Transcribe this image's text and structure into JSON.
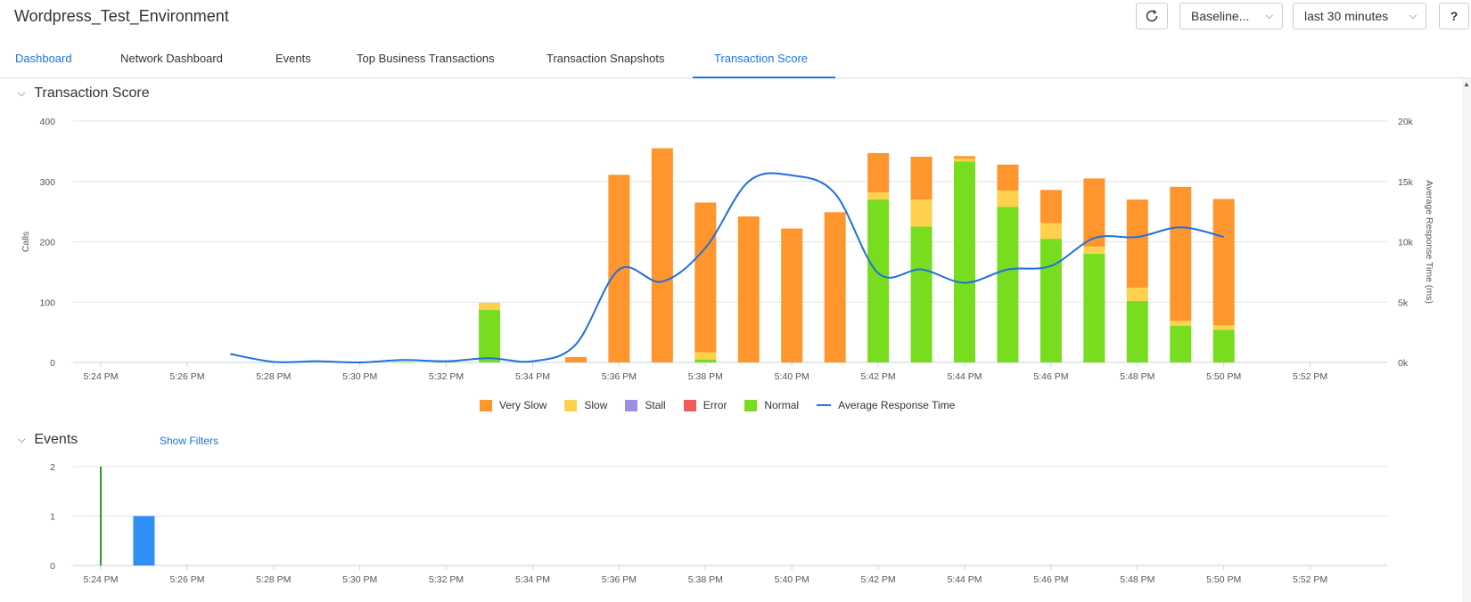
{
  "header": {
    "title": "Wordpress_Test_Environment",
    "baseline_label": "Baseline...",
    "time_range_label": "last 30 minutes",
    "help_label": "?",
    "refresh_icon": "refresh-icon"
  },
  "tabs": [
    {
      "label": "Dashboard"
    },
    {
      "label": "Network Dashboard"
    },
    {
      "label": "Events"
    },
    {
      "label": "Top Business Transactions"
    },
    {
      "label": "Transaction Snapshots"
    },
    {
      "label": "Transaction Score",
      "active": true
    }
  ],
  "score_section": {
    "title": "Transaction Score"
  },
  "events_section": {
    "title": "Events",
    "filters_link": "Show Filters"
  },
  "colors": {
    "very_slow": "#ff962d",
    "slow": "#ffd04d",
    "stall": "#9b8fe6",
    "error": "#ee5b5b",
    "normal": "#77dd1e",
    "avg_line": "#1f6fe0",
    "event_bar": "#2f8ff5",
    "event_line": "#2a9d2a"
  },
  "chart_data": [
    {
      "type": "bar",
      "stacked": true,
      "title": "Transaction Score",
      "ylabel": "Calls",
      "y2label": "Average Response Time (ms)",
      "ylim": [
        0,
        400
      ],
      "y2lim": [
        0,
        20000
      ],
      "yticks": [
        "0",
        "100",
        "200",
        "300",
        "400"
      ],
      "y2ticks": [
        "0k",
        "5k",
        "10k",
        "15k",
        "20k"
      ],
      "xticks": [
        "5:24 PM",
        "5:26 PM",
        "5:28 PM",
        "5:30 PM",
        "5:32 PM",
        "5:34 PM",
        "5:36 PM",
        "5:38 PM",
        "5:40 PM",
        "5:42 PM",
        "5:44 PM",
        "5:46 PM",
        "5:48 PM",
        "5:50 PM",
        "5:52 PM"
      ],
      "categories": [
        "5:24 PM",
        "5:25 PM",
        "5:26 PM",
        "5:27 PM",
        "5:28 PM",
        "5:29 PM",
        "5:30 PM",
        "5:31 PM",
        "5:32 PM",
        "5:33 PM",
        "5:34 PM",
        "5:35 PM",
        "5:36 PM",
        "5:37 PM",
        "5:38 PM",
        "5:39 PM",
        "5:40 PM",
        "5:41 PM",
        "5:42 PM",
        "5:43 PM",
        "5:44 PM",
        "5:45 PM",
        "5:46 PM",
        "5:47 PM",
        "5:48 PM",
        "5:49 PM",
        "5:50 PM",
        "5:51 PM",
        "5:52 PM",
        "5:53 PM"
      ],
      "series": [
        {
          "name": "Normal",
          "values": [
            0,
            0,
            0,
            0,
            0,
            0,
            0,
            1,
            1,
            87,
            0,
            0,
            0,
            0,
            5,
            0,
            0,
            0,
            270,
            225,
            333,
            258,
            205,
            180,
            102,
            61,
            54,
            0,
            0,
            0
          ]
        },
        {
          "name": "Slow",
          "values": [
            0,
            0,
            0,
            0,
            0,
            0,
            0,
            0,
            0,
            12,
            0,
            0,
            0,
            0,
            12,
            0,
            0,
            0,
            12,
            45,
            5,
            27,
            26,
            12,
            22,
            8,
            8,
            0,
            0,
            0
          ]
        },
        {
          "name": "Very Slow",
          "values": [
            0,
            0,
            0,
            0,
            0,
            0,
            0,
            0,
            0,
            0,
            0,
            9,
            311,
            355,
            248,
            242,
            222,
            249,
            65,
            71,
            4,
            43,
            55,
            113,
            146,
            222,
            209,
            0,
            0,
            0
          ]
        },
        {
          "name": "Stall",
          "values": [
            0,
            0,
            0,
            0,
            0,
            0,
            0,
            0,
            0,
            0,
            0,
            0,
            0,
            0,
            0,
            0,
            0,
            0,
            0,
            0,
            0,
            0,
            0,
            0,
            0,
            0,
            0,
            0,
            0,
            0
          ]
        },
        {
          "name": "Error",
          "values": [
            0,
            0,
            0,
            0,
            0,
            0,
            0,
            0,
            0,
            0,
            0,
            0,
            0,
            0,
            0,
            0,
            0,
            0,
            0,
            0,
            0,
            0,
            0,
            0,
            0,
            0,
            0,
            0,
            0,
            0
          ]
        }
      ],
      "line": {
        "name": "Average Response Time",
        "x": [
          "5:27 PM",
          "5:28 PM",
          "5:29 PM",
          "5:30 PM",
          "5:31 PM",
          "5:32 PM",
          "5:33 PM",
          "5:34 PM",
          "5:35 PM",
          "5:36 PM",
          "5:37 PM",
          "5:38 PM",
          "5:39 PM",
          "5:40 PM",
          "5:41 PM",
          "5:42 PM",
          "5:43 PM",
          "5:44 PM",
          "5:45 PM",
          "5:46 PM",
          "5:47 PM",
          "5:48 PM",
          "5:49 PM",
          "5:50 PM"
        ],
        "values": [
          700,
          50,
          100,
          0,
          200,
          100,
          350,
          100,
          1500,
          7700,
          6700,
          9500,
          15000,
          15500,
          14000,
          7400,
          7700,
          6600,
          7700,
          8000,
          10300,
          10400,
          11200,
          10400
        ]
      },
      "legend": [
        "Very Slow",
        "Slow",
        "Stall",
        "Error",
        "Normal",
        "Average Response Time"
      ],
      "legend_position": "bottom"
    },
    {
      "type": "bar",
      "title": "Events",
      "ylim": [
        0,
        2
      ],
      "yticks": [
        "0",
        "1",
        "2"
      ],
      "xticks": [
        "5:24 PM",
        "5:26 PM",
        "5:28 PM",
        "5:30 PM",
        "5:32 PM",
        "5:34 PM",
        "5:36 PM",
        "5:38 PM",
        "5:40 PM",
        "5:42 PM",
        "5:44 PM",
        "5:46 PM",
        "5:48 PM",
        "5:50 PM",
        "5:52 PM"
      ],
      "bars": [
        {
          "x": "5:25 PM",
          "value": 1
        }
      ],
      "marker_line": {
        "x": "5:24 PM",
        "value": 2
      }
    }
  ]
}
